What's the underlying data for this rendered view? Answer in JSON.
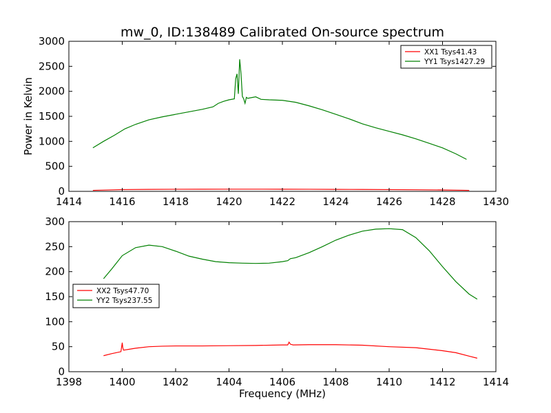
{
  "chart_data": [
    {
      "type": "line",
      "title": "mw_0, ID:138489 Calibrated On-source spectrum",
      "xlabel": "",
      "ylabel": "Power in Kelvin",
      "xlim": [
        1414,
        1430
      ],
      "ylim": [
        0,
        3000
      ],
      "xticks": [
        1414,
        1416,
        1418,
        1420,
        1422,
        1424,
        1426,
        1428,
        1430
      ],
      "yticks": [
        0,
        500,
        1000,
        1500,
        2000,
        2500,
        3000
      ],
      "grid": false,
      "legend_position": "top-right",
      "series": [
        {
          "name": "XX1 Tsys41.43",
          "color": "#ff0000",
          "x": [
            1414.9,
            1416,
            1417,
            1418,
            1419,
            1420,
            1421,
            1422,
            1423,
            1424,
            1425,
            1426,
            1427,
            1428,
            1429
          ],
          "y": [
            20,
            35,
            40,
            42,
            43,
            44,
            44,
            43,
            42,
            40,
            38,
            35,
            32,
            28,
            20
          ]
        },
        {
          "name": "YY1 Tsys1427.29",
          "color": "#008000",
          "x": [
            1414.9,
            1415.3,
            1415.7,
            1416.1,
            1416.5,
            1417,
            1417.5,
            1418,
            1418.5,
            1419,
            1419.4,
            1419.6,
            1419.8,
            1420.0,
            1420.2,
            1420.25,
            1420.3,
            1420.35,
            1420.4,
            1420.45,
            1420.5,
            1420.55,
            1420.6,
            1420.65,
            1420.7,
            1420.8,
            1421.0,
            1421.2,
            1421.5,
            1422,
            1422.5,
            1423,
            1423.5,
            1424,
            1424.5,
            1425,
            1425.5,
            1426,
            1426.5,
            1427,
            1427.5,
            1428,
            1428.5,
            1428.9
          ],
          "y": [
            870,
            1000,
            1120,
            1250,
            1340,
            1430,
            1490,
            1540,
            1590,
            1640,
            1690,
            1760,
            1800,
            1830,
            1850,
            2250,
            2350,
            1950,
            2640,
            2350,
            1900,
            1850,
            1760,
            1880,
            1860,
            1870,
            1890,
            1840,
            1830,
            1820,
            1780,
            1710,
            1630,
            1540,
            1450,
            1350,
            1270,
            1200,
            1130,
            1050,
            960,
            870,
            750,
            640
          ]
        }
      ]
    },
    {
      "type": "line",
      "title": "",
      "xlabel": "Frequency (MHz)",
      "ylabel": "",
      "xlim": [
        1398,
        1414
      ],
      "ylim": [
        0,
        300
      ],
      "xticks": [
        1398,
        1400,
        1402,
        1404,
        1406,
        1408,
        1410,
        1412,
        1414
      ],
      "yticks": [
        0,
        50,
        100,
        150,
        200,
        250,
        300
      ],
      "grid": false,
      "legend_position": "center-left",
      "series": [
        {
          "name": "XX2 Tsys47.70",
          "color": "#ff0000",
          "x": [
            1399.3,
            1399.6,
            1399.95,
            1400.0,
            1400.02,
            1400.05,
            1400.5,
            1401,
            1401.5,
            1402,
            1403,
            1404,
            1405,
            1406,
            1406.2,
            1406.25,
            1406.3,
            1406.4,
            1407,
            1408,
            1409,
            1410,
            1411,
            1412,
            1412.5,
            1413,
            1413.3
          ],
          "y": [
            32,
            36,
            40,
            58,
            48,
            43,
            47,
            50,
            51,
            51.5,
            51.5,
            52,
            52.5,
            53.5,
            53.5,
            59,
            55,
            53.5,
            54,
            54,
            53,
            50,
            48,
            42,
            38,
            31,
            27
          ]
        },
        {
          "name": "YY2 Tsys237.55",
          "color": "#008000",
          "x": [
            1399.3,
            1399.6,
            1400,
            1400.5,
            1401,
            1401.5,
            1402,
            1402.5,
            1403,
            1403.5,
            1404,
            1404.5,
            1405,
            1405.5,
            1406,
            1406.2,
            1406.3,
            1406.5,
            1407,
            1407.5,
            1408,
            1408.5,
            1409,
            1409.5,
            1410,
            1410.5,
            1411,
            1411.5,
            1412,
            1412.5,
            1413,
            1413.3
          ],
          "y": [
            186,
            205,
            232,
            248,
            253,
            250,
            241,
            231,
            225,
            220,
            218,
            217,
            216.5,
            217,
            220,
            222,
            226,
            228,
            238,
            250,
            263,
            273,
            281,
            285,
            286,
            284,
            268,
            242,
            210,
            180,
            155,
            145
          ]
        }
      ]
    }
  ]
}
